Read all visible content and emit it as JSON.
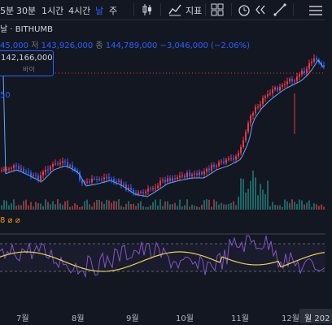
{
  "toolbar": {
    "intervals": [
      "5분",
      "30분",
      "1시간",
      "4시간",
      "날",
      "주"
    ],
    "active_interval": "날",
    "indicators_label": "지표",
    "icons": [
      "candle-icon",
      "indicators-icon",
      "layout-icon",
      "alert-icon",
      "replay-icon",
      "line-tool-icon",
      "menu-icon"
    ]
  },
  "legend": {
    "title": "날 · BITHUMB",
    "open_value": "45,000",
    "low_label": "저",
    "low_value": "143,926,000",
    "close_label": "종",
    "close_value": "144,789,000",
    "change": "−3,046,000 (−2.06%)"
  },
  "price_box": {
    "value": "142,166,000",
    "label": "바이"
  },
  "ma_value": "50",
  "rsi_legend": "8 ⌀ ⌀",
  "xaxis": {
    "ticks": [
      "7월",
      "8월",
      "9월",
      "10월",
      "11월",
      "12월"
    ],
    "highlight": "월 202"
  },
  "colors": {
    "background": "#131722",
    "up": "#f23645",
    "down": "#2962ff",
    "ma": "#5fa8ff",
    "rsi": "#7e57c2",
    "rsi_ma": "#e8d44d"
  }
}
